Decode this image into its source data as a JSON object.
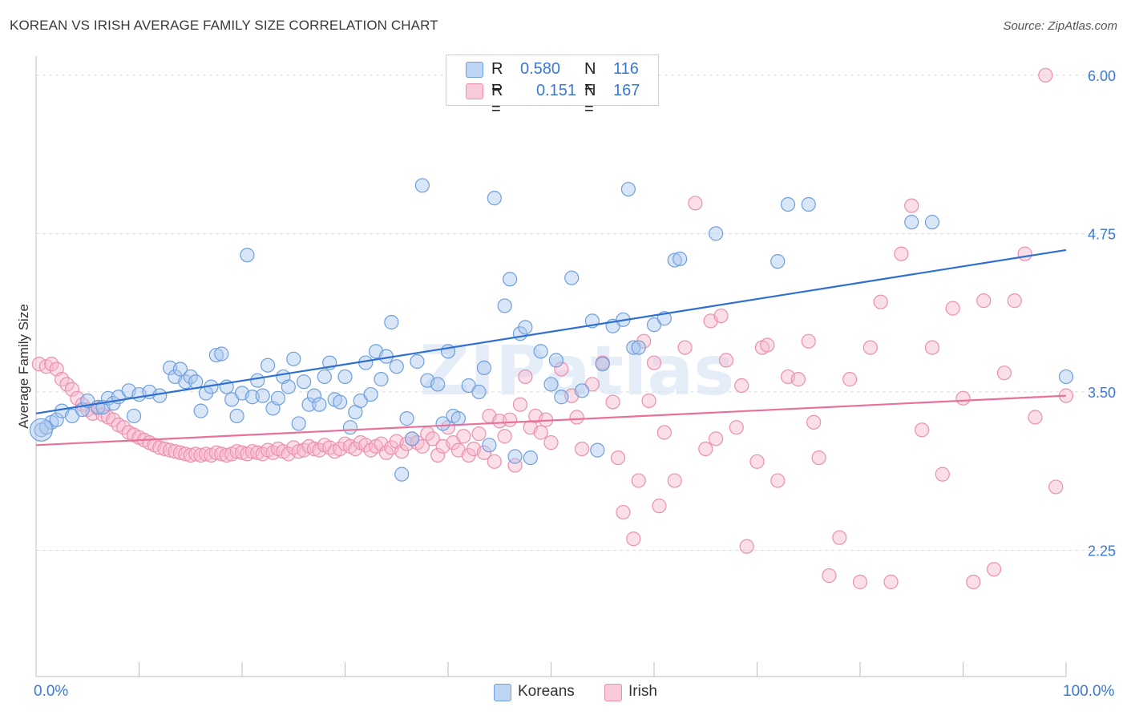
{
  "title": "KOREAN VS IRISH AVERAGE FAMILY SIZE CORRELATION CHART",
  "source": "Source: ZipAtlas.com",
  "watermark": "ZIPatlas",
  "legend": {
    "korean": {
      "r_label": "R =",
      "r_value": "0.580",
      "n_label": "N =",
      "n_value": "116"
    },
    "irish": {
      "r_label": "R =",
      "r_value": "0.151",
      "n_label": "N =",
      "n_value": "167"
    }
  },
  "bottom_legend": {
    "korean": "Koreans",
    "irish": "Irish"
  },
  "x_axis": {
    "min_label": "0.0%",
    "max_label": "100.0%"
  },
  "colors": {
    "korean_fill": "#a9c8f0",
    "korean_stroke": "#6f9fdc",
    "korean_line": "#2f6fd0",
    "irish_fill": "#f6b8cd",
    "irish_stroke": "#ec8fae",
    "irish_line": "#e8719a",
    "tick_text": "#3a78d8",
    "grid": "#dddddd"
  },
  "chart_data": {
    "type": "scatter",
    "title": "KOREAN VS IRISH AVERAGE FAMILY SIZE CORRELATION CHART",
    "xlabel": "",
    "ylabel": "Average Family Size",
    "xlim": [
      0,
      100
    ],
    "ylim": [
      1.5,
      6.1
    ],
    "y_ticks": [
      2.25,
      3.5,
      4.75,
      6.0
    ],
    "y_tick_labels": [
      "2.25",
      "3.50",
      "4.75",
      "6.00"
    ],
    "grid": true,
    "legend_position": "top-center",
    "series": [
      {
        "name": "Koreans",
        "trendline": {
          "x": [
            0,
            100
          ],
          "y": [
            3.33,
            4.62
          ]
        },
        "points": [
          [
            0.5,
            3.2
          ],
          [
            1.0,
            3.22
          ],
          [
            1.5,
            3.26
          ],
          [
            2.0,
            3.28
          ],
          [
            2.5,
            3.35
          ],
          [
            3.5,
            3.31
          ],
          [
            4.5,
            3.36
          ],
          [
            5,
            3.43
          ],
          [
            6,
            3.38
          ],
          [
            6.5,
            3.38
          ],
          [
            7,
            3.45
          ],
          [
            7.5,
            3.41
          ],
          [
            8,
            3.46
          ],
          [
            9,
            3.51
          ],
          [
            9.5,
            3.31
          ],
          [
            10,
            3.48
          ],
          [
            11,
            3.5
          ],
          [
            12,
            3.47
          ],
          [
            13,
            3.69
          ],
          [
            13.5,
            3.62
          ],
          [
            14,
            3.68
          ],
          [
            14.5,
            3.58
          ],
          [
            15,
            3.62
          ],
          [
            15.5,
            3.58
          ],
          [
            16,
            3.35
          ],
          [
            16.5,
            3.49
          ],
          [
            17,
            3.54
          ],
          [
            17.5,
            3.79
          ],
          [
            18,
            3.8
          ],
          [
            18.5,
            3.54
          ],
          [
            19,
            3.44
          ],
          [
            19.5,
            3.31
          ],
          [
            20,
            3.49
          ],
          [
            20.5,
            4.58
          ],
          [
            21,
            3.46
          ],
          [
            21.5,
            3.59
          ],
          [
            22,
            3.47
          ],
          [
            22.5,
            3.71
          ],
          [
            23,
            3.37
          ],
          [
            23.5,
            3.45
          ],
          [
            24,
            3.62
          ],
          [
            24.5,
            3.54
          ],
          [
            25,
            3.76
          ],
          [
            25.5,
            3.25
          ],
          [
            26,
            3.58
          ],
          [
            26.5,
            3.4
          ],
          [
            27,
            3.47
          ],
          [
            27.5,
            3.4
          ],
          [
            28,
            3.62
          ],
          [
            28.5,
            3.73
          ],
          [
            29,
            3.44
          ],
          [
            29.5,
            3.42
          ],
          [
            30,
            3.62
          ],
          [
            30.5,
            3.22
          ],
          [
            31,
            3.34
          ],
          [
            31.5,
            3.43
          ],
          [
            32,
            3.73
          ],
          [
            32.5,
            3.48
          ],
          [
            33,
            3.82
          ],
          [
            33.5,
            3.6
          ],
          [
            34,
            3.78
          ],
          [
            34.5,
            4.05
          ],
          [
            35,
            3.7
          ],
          [
            35.5,
            2.85
          ],
          [
            36,
            3.29
          ],
          [
            36.5,
            3.13
          ],
          [
            37,
            3.74
          ],
          [
            37.5,
            5.13
          ],
          [
            38,
            3.59
          ],
          [
            39,
            3.56
          ],
          [
            39.5,
            3.25
          ],
          [
            40,
            3.82
          ],
          [
            40.5,
            3.31
          ],
          [
            41,
            3.29
          ],
          [
            42,
            3.55
          ],
          [
            43,
            3.5
          ],
          [
            43.5,
            3.69
          ],
          [
            44,
            3.08
          ],
          [
            44.5,
            5.03
          ],
          [
            45.5,
            4.18
          ],
          [
            46,
            4.39
          ],
          [
            46.5,
            2.99
          ],
          [
            47,
            3.96
          ],
          [
            47.5,
            4.01
          ],
          [
            48,
            2.98
          ],
          [
            49,
            3.82
          ],
          [
            50,
            3.56
          ],
          [
            50.5,
            3.75
          ],
          [
            51,
            3.46
          ],
          [
            52,
            4.4
          ],
          [
            53,
            3.51
          ],
          [
            54,
            4.06
          ],
          [
            54.5,
            3.04
          ],
          [
            55,
            3.72
          ],
          [
            56,
            4.02
          ],
          [
            57,
            4.07
          ],
          [
            57.5,
            5.1
          ],
          [
            58,
            3.85
          ],
          [
            58.5,
            3.85
          ],
          [
            60,
            4.03
          ],
          [
            61,
            4.08
          ],
          [
            62,
            4.54
          ],
          [
            62.5,
            4.55
          ],
          [
            66,
            4.75
          ],
          [
            72,
            4.53
          ],
          [
            73,
            4.98
          ],
          [
            75,
            4.98
          ],
          [
            85,
            4.84
          ],
          [
            87,
            4.84
          ],
          [
            100,
            3.62
          ]
        ]
      },
      {
        "name": "Irish",
        "trendline": {
          "x": [
            0,
            100
          ],
          "y": [
            3.08,
            3.47
          ]
        },
        "points": [
          [
            0.3,
            3.72
          ],
          [
            1.0,
            3.7
          ],
          [
            1.5,
            3.72
          ],
          [
            2,
            3.68
          ],
          [
            2.5,
            3.6
          ],
          [
            3,
            3.56
          ],
          [
            3.5,
            3.52
          ],
          [
            4,
            3.45
          ],
          [
            4.5,
            3.4
          ],
          [
            5,
            3.36
          ],
          [
            5.5,
            3.33
          ],
          [
            6,
            3.37
          ],
          [
            6.5,
            3.32
          ],
          [
            7,
            3.3
          ],
          [
            7.5,
            3.28
          ],
          [
            8,
            3.24
          ],
          [
            8.5,
            3.22
          ],
          [
            9,
            3.18
          ],
          [
            9.5,
            3.16
          ],
          [
            10,
            3.14
          ],
          [
            10.5,
            3.12
          ],
          [
            11,
            3.1
          ],
          [
            11.5,
            3.08
          ],
          [
            12,
            3.06
          ],
          [
            12.5,
            3.05
          ],
          [
            13,
            3.04
          ],
          [
            13.5,
            3.03
          ],
          [
            14,
            3.02
          ],
          [
            14.5,
            3.01
          ],
          [
            15,
            3.0
          ],
          [
            15.5,
            3.01
          ],
          [
            16,
            3.0
          ],
          [
            16.5,
            3.01
          ],
          [
            17,
            3.0
          ],
          [
            17.5,
            3.02
          ],
          [
            18,
            3.01
          ],
          [
            18.5,
            3.0
          ],
          [
            19,
            3.01
          ],
          [
            19.5,
            3.03
          ],
          [
            20,
            3.02
          ],
          [
            20.5,
            3.01
          ],
          [
            21,
            3.03
          ],
          [
            21.5,
            3.02
          ],
          [
            22,
            3.01
          ],
          [
            22.5,
            3.04
          ],
          [
            23,
            3.02
          ],
          [
            23.5,
            3.05
          ],
          [
            24,
            3.03
          ],
          [
            24.5,
            3.01
          ],
          [
            25,
            3.06
          ],
          [
            25.5,
            3.03
          ],
          [
            26,
            3.04
          ],
          [
            26.5,
            3.07
          ],
          [
            27,
            3.05
          ],
          [
            27.5,
            3.04
          ],
          [
            28,
            3.08
          ],
          [
            28.5,
            3.06
          ],
          [
            29,
            3.03
          ],
          [
            29.5,
            3.05
          ],
          [
            30,
            3.09
          ],
          [
            30.5,
            3.07
          ],
          [
            31,
            3.05
          ],
          [
            31.5,
            3.1
          ],
          [
            32,
            3.08
          ],
          [
            32.5,
            3.04
          ],
          [
            33,
            3.07
          ],
          [
            33.5,
            3.09
          ],
          [
            34,
            3.02
          ],
          [
            34.5,
            3.06
          ],
          [
            35,
            3.11
          ],
          [
            35.5,
            3.03
          ],
          [
            36,
            3.09
          ],
          [
            36.5,
            3.13
          ],
          [
            37,
            3.1
          ],
          [
            37.5,
            3.07
          ],
          [
            38,
            3.17
          ],
          [
            38.5,
            3.13
          ],
          [
            39,
            3.0
          ],
          [
            39.5,
            3.07
          ],
          [
            40,
            3.22
          ],
          [
            40.5,
            3.1
          ],
          [
            41,
            3.04
          ],
          [
            41.5,
            3.15
          ],
          [
            42,
            3.0
          ],
          [
            42.5,
            3.05
          ],
          [
            43,
            3.17
          ],
          [
            43.5,
            3.02
          ],
          [
            44,
            3.31
          ],
          [
            44.5,
            2.95
          ],
          [
            45,
            3.27
          ],
          [
            45.5,
            3.15
          ],
          [
            46,
            3.28
          ],
          [
            46.5,
            2.92
          ],
          [
            47,
            3.4
          ],
          [
            47.5,
            3.62
          ],
          [
            48,
            3.22
          ],
          [
            48.5,
            3.31
          ],
          [
            49,
            3.18
          ],
          [
            49.5,
            3.28
          ],
          [
            50,
            3.1
          ],
          [
            51,
            3.68
          ],
          [
            52,
            3.47
          ],
          [
            52.5,
            3.3
          ],
          [
            53,
            3.05
          ],
          [
            54,
            3.56
          ],
          [
            55,
            3.73
          ],
          [
            56,
            3.42
          ],
          [
            56.5,
            2.98
          ],
          [
            57,
            2.55
          ],
          [
            58,
            2.34
          ],
          [
            58.5,
            2.8
          ],
          [
            59,
            3.9
          ],
          [
            59.5,
            3.43
          ],
          [
            60,
            3.73
          ],
          [
            60.5,
            2.6
          ],
          [
            61,
            3.18
          ],
          [
            62,
            2.8
          ],
          [
            63,
            3.85
          ],
          [
            64,
            4.99
          ],
          [
            65,
            3.05
          ],
          [
            65.5,
            4.06
          ],
          [
            66,
            3.13
          ],
          [
            66.5,
            4.1
          ],
          [
            67,
            3.75
          ],
          [
            68,
            3.22
          ],
          [
            68.5,
            3.55
          ],
          [
            69,
            2.28
          ],
          [
            70,
            2.95
          ],
          [
            70.5,
            3.85
          ],
          [
            71,
            3.87
          ],
          [
            72,
            2.8
          ],
          [
            73,
            3.62
          ],
          [
            74,
            3.6
          ],
          [
            75,
            3.9
          ],
          [
            75.5,
            3.26
          ],
          [
            76,
            2.98
          ],
          [
            77,
            2.05
          ],
          [
            78,
            2.35
          ],
          [
            79,
            3.6
          ],
          [
            80,
            2.0
          ],
          [
            81,
            3.85
          ],
          [
            82,
            4.21
          ],
          [
            83,
            2.0
          ],
          [
            84,
            4.59
          ],
          [
            85,
            4.97
          ],
          [
            86,
            3.2
          ],
          [
            87,
            3.85
          ],
          [
            88,
            2.85
          ],
          [
            89,
            4.16
          ],
          [
            90,
            3.45
          ],
          [
            91,
            2.0
          ],
          [
            92,
            4.22
          ],
          [
            93,
            2.1
          ],
          [
            94,
            3.65
          ],
          [
            95,
            4.22
          ],
          [
            96,
            4.59
          ],
          [
            97,
            3.3
          ],
          [
            98,
            6.0
          ],
          [
            99,
            2.75
          ],
          [
            100,
            3.47
          ]
        ]
      }
    ]
  }
}
